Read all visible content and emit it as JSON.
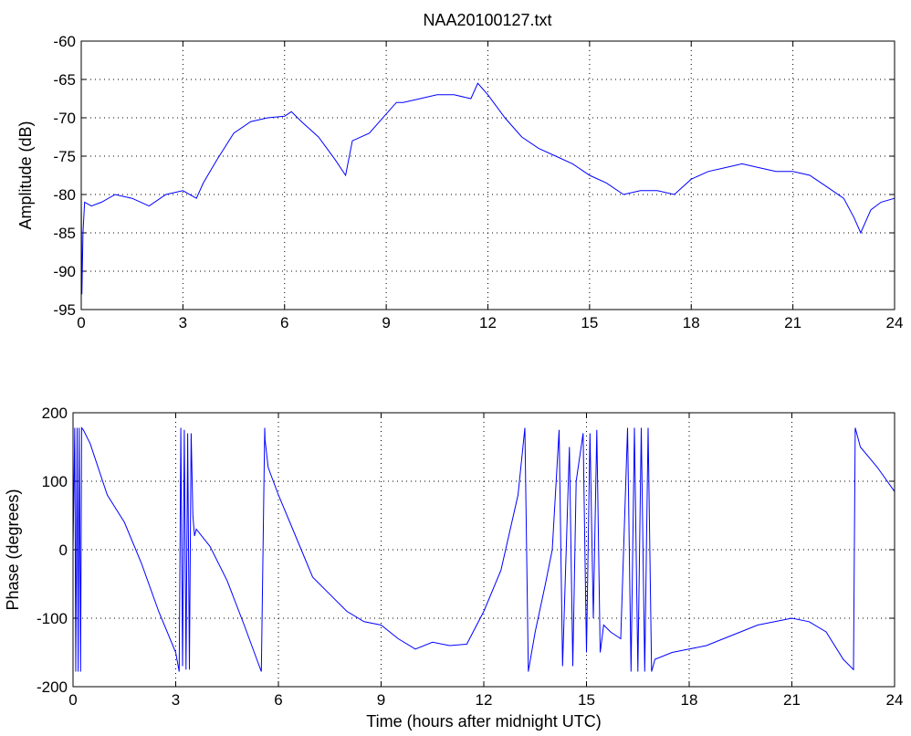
{
  "chart_data": [
    {
      "type": "line",
      "title": "NAA20100127.txt",
      "xlabel": "",
      "ylabel": "Amplitude (dB)",
      "xlim": [
        0,
        24
      ],
      "ylim": [
        -95,
        -60
      ],
      "xticks": [
        0,
        3,
        6,
        9,
        12,
        15,
        18,
        21,
        24
      ],
      "yticks": [
        -95,
        -90,
        -85,
        -80,
        -75,
        -70,
        -65,
        -60
      ],
      "grid": true,
      "color": "#0000ff",
      "series": [
        {
          "x": [
            0,
            0.02,
            0.05,
            0.1,
            0.3,
            0.6,
            1.0,
            1.5,
            2.0,
            2.5,
            3.0,
            3.4,
            3.6,
            4.0,
            4.5,
            5.0,
            5.5,
            6.0,
            6.2,
            6.5,
            7.0,
            7.5,
            7.8,
            8.0,
            8.5,
            9.0,
            9.3,
            9.5,
            10.0,
            10.5,
            11.0,
            11.5,
            11.7,
            12.0,
            12.5,
            13.0,
            13.5,
            14.0,
            14.5,
            15.0,
            15.5,
            16.0,
            16.5,
            17.0,
            17.5,
            18.0,
            18.5,
            19.0,
            19.5,
            20.0,
            20.5,
            21.0,
            21.5,
            22.0,
            22.5,
            22.8,
            23.0,
            23.3,
            23.6,
            24.0
          ],
          "y": [
            -80,
            -93,
            -85,
            -81,
            -81.5,
            -81,
            -80,
            -80.5,
            -81.5,
            -80,
            -79.5,
            -80.5,
            -78.5,
            -75.5,
            -72,
            -70.5,
            -70,
            -69.8,
            -69.2,
            -70.5,
            -72.5,
            -75.5,
            -77.5,
            -73,
            -72,
            -69.5,
            -68,
            -68,
            -67.5,
            -67,
            -67,
            -67.5,
            -65.5,
            -67,
            -70,
            -72.5,
            -74,
            -75,
            -76,
            -77.5,
            -78.5,
            -80,
            -79.5,
            -79.5,
            -80,
            -78,
            -77,
            -76.5,
            -76,
            -76.5,
            -77,
            -77,
            -77.5,
            -79,
            -80.5,
            -83,
            -85,
            -82,
            -81,
            -80.5
          ]
        }
      ]
    },
    {
      "type": "line",
      "title": "",
      "xlabel": "Time (hours after midnight UTC)",
      "ylabel": "Phase (degrees)",
      "xlim": [
        0,
        24
      ],
      "ylim": [
        -200,
        200
      ],
      "xticks": [
        0,
        3,
        6,
        9,
        12,
        15,
        18,
        21,
        24
      ],
      "yticks": [
        -200,
        -100,
        0,
        100,
        200
      ],
      "grid": true,
      "color": "#0000ff",
      "series": [
        {
          "x": [
            0,
            0.05,
            0.08,
            0.12,
            0.15,
            0.18,
            0.22,
            0.25,
            0.3,
            0.5,
            0.8,
            1.0,
            1.5,
            2.0,
            2.5,
            3.0,
            3.1,
            3.15,
            3.2,
            3.25,
            3.3,
            3.35,
            3.4,
            3.45,
            3.5,
            3.55,
            3.6,
            4.0,
            4.5,
            5.0,
            5.5,
            5.6,
            5.61,
            5.7,
            6.0,
            6.5,
            7.0,
            7.5,
            8.0,
            8.5,
            9.0,
            9.5,
            10.0,
            10.5,
            11.0,
            11.5,
            12.0,
            12.5,
            13.0,
            13.2,
            13.3,
            13.31,
            13.5,
            13.8,
            14.0,
            14.2,
            14.3,
            14.5,
            14.6,
            14.7,
            14.9,
            15.0,
            15.1,
            15.2,
            15.3,
            15.4,
            15.5,
            15.7,
            16.0,
            16.2,
            16.3,
            16.4,
            16.5,
            16.6,
            16.7,
            16.8,
            16.9,
            17.0,
            17.5,
            18.0,
            18.5,
            19.0,
            19.5,
            20.0,
            20.5,
            21.0,
            21.5,
            22.0,
            22.5,
            22.8,
            22.85,
            23.0,
            23.5,
            24.0
          ],
          "y": [
            0,
            178,
            -178,
            178,
            -178,
            178,
            -178,
            178,
            175,
            155,
            110,
            80,
            40,
            -20,
            -90,
            -150,
            -178,
            178,
            -170,
            175,
            -175,
            170,
            -175,
            170,
            50,
            20,
            30,
            5,
            -45,
            -110,
            -178,
            178,
            160,
            120,
            80,
            20,
            -40,
            -65,
            -90,
            -105,
            -110,
            -130,
            -145,
            -135,
            -140,
            -138,
            -90,
            -30,
            80,
            178,
            -178,
            -175,
            -120,
            -50,
            0,
            175,
            -170,
            150,
            -170,
            100,
            170,
            -150,
            170,
            -100,
            175,
            -150,
            -110,
            -120,
            -130,
            178,
            -178,
            178,
            -178,
            178,
            -178,
            178,
            -178,
            -160,
            -150,
            -145,
            -140,
            -130,
            -120,
            -110,
            -105,
            -100,
            -105,
            -120,
            -160,
            -175,
            178,
            150,
            120,
            85
          ]
        }
      ]
    }
  ]
}
